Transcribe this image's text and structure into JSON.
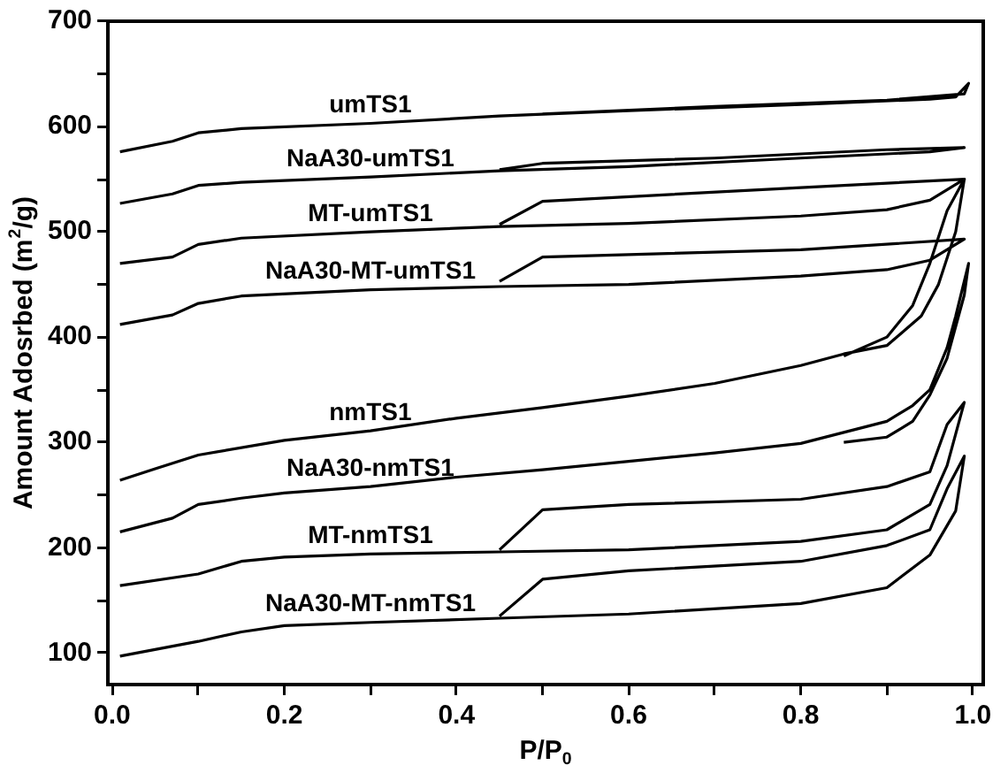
{
  "chart_data": {
    "type": "line",
    "xlabel": "P/P$_{0}$",
    "ylabel": "Amount Adosrbed (m$^{2}$/g)",
    "xlim": [
      -0.005,
      1.012
    ],
    "ylim": [
      70,
      700
    ],
    "xticks": [
      {
        "value": 0,
        "label": "0.0"
      },
      {
        "value": 0.1,
        "label": null
      },
      {
        "value": 0.2,
        "label": "0.2"
      },
      {
        "value": 0.3,
        "label": null
      },
      {
        "value": 0.4,
        "label": "0.4"
      },
      {
        "value": 0.5,
        "label": null
      },
      {
        "value": 0.6,
        "label": "0.6"
      },
      {
        "value": 0.7,
        "label": null
      },
      {
        "value": 0.8,
        "label": "0.8"
      },
      {
        "value": 0.9,
        "label": null
      },
      {
        "value": 1,
        "label": "1.0"
      }
    ],
    "yticks": [
      100,
      {
        "value": 150,
        "label": null
      },
      200,
      {
        "value": 250,
        "label": null
      },
      300,
      {
        "value": 350,
        "label": null
      },
      400,
      {
        "value": 450,
        "label": null
      },
      500,
      {
        "value": 550,
        "label": null
      },
      600,
      {
        "value": 650,
        "label": null
      },
      700
    ],
    "grid": false,
    "legend": false,
    "marker": "none",
    "line_style": "solid",
    "series": [
      {
        "name": "umTS1",
        "color": "#000000",
        "x": [
          0.009,
          0.07,
          0.1,
          0.15,
          0.3,
          0.45,
          0.6,
          0.8,
          0.95,
          0.98,
          0.995,
          0.99,
          0.9,
          0.7,
          0.5
        ],
        "values": [
          576,
          586,
          594,
          598,
          603,
          610,
          615,
          621,
          626,
          628,
          641,
          631,
          625,
          619,
          612
        ]
      },
      {
        "name": "NaA30-umTS1",
        "color": "#000000",
        "x": [
          0.009,
          0.07,
          0.1,
          0.15,
          0.3,
          0.45,
          0.6,
          0.8,
          0.95,
          0.99,
          0.9,
          0.7,
          0.5,
          0.45
        ],
        "values": [
          527,
          536,
          544,
          547,
          552,
          558,
          562,
          570,
          576,
          580,
          578,
          570,
          565,
          559
        ]
      },
      {
        "name": "MT-umTS1",
        "color": "#000000",
        "x": [
          0.009,
          0.07,
          0.1,
          0.15,
          0.3,
          0.45,
          0.6,
          0.8,
          0.9,
          0.95,
          0.99,
          0.8,
          0.5,
          0.45
        ],
        "values": [
          470,
          476,
          488,
          494,
          500,
          505,
          508,
          515,
          521,
          530,
          550,
          542,
          529,
          507
        ]
      },
      {
        "name": "NaA30-MT-umTS1",
        "color": "#000000",
        "x": [
          0.009,
          0.07,
          0.1,
          0.15,
          0.3,
          0.45,
          0.6,
          0.8,
          0.9,
          0.95,
          0.99,
          0.8,
          0.5,
          0.45
        ],
        "values": [
          412,
          421,
          432,
          439,
          445,
          448,
          450,
          458,
          464,
          473,
          493,
          483,
          476,
          453
        ]
      },
      {
        "name": "nmTS1",
        "color": "#000000",
        "x": [
          0.009,
          0.05,
          0.1,
          0.2,
          0.3,
          0.4,
          0.5,
          0.6,
          0.7,
          0.8,
          0.85,
          0.9,
          0.94,
          0.96,
          0.98,
          0.99,
          0.97,
          0.95,
          0.93,
          0.9,
          0.85
        ],
        "values": [
          264,
          275,
          288,
          302,
          311,
          323,
          333,
          344,
          356,
          373,
          384,
          392,
          420,
          450,
          500,
          550,
          520,
          470,
          430,
          400,
          382
        ]
      },
      {
        "name": "NaA30-nmTS1",
        "color": "#000000",
        "x": [
          0.009,
          0.07,
          0.1,
          0.15,
          0.2,
          0.3,
          0.4,
          0.5,
          0.6,
          0.7,
          0.8,
          0.9,
          0.93,
          0.95,
          0.97,
          0.98,
          0.995,
          0.99,
          0.97,
          0.95,
          0.93,
          0.9,
          0.85
        ],
        "values": [
          215,
          228,
          241,
          247,
          252,
          258,
          267,
          274,
          282,
          290,
          299,
          320,
          335,
          350,
          390,
          420,
          470,
          440,
          380,
          345,
          320,
          305,
          300
        ]
      },
      {
        "name": "MT-nmTS1",
        "color": "#000000",
        "x": [
          0.009,
          0.1,
          0.15,
          0.2,
          0.3,
          0.45,
          0.6,
          0.8,
          0.9,
          0.95,
          0.97,
          0.99,
          0.97,
          0.95,
          0.9,
          0.8,
          0.6,
          0.5,
          0.45
        ],
        "values": [
          164,
          175,
          187,
          191,
          194,
          196,
          198,
          206,
          217,
          241,
          278,
          338,
          317,
          272,
          258,
          246,
          241,
          236,
          198
        ]
      },
      {
        "name": "NaA30-MT-nmTS1",
        "color": "#000000",
        "x": [
          0.009,
          0.1,
          0.15,
          0.2,
          0.3,
          0.45,
          0.6,
          0.8,
          0.9,
          0.95,
          0.98,
          0.99,
          0.97,
          0.95,
          0.9,
          0.8,
          0.6,
          0.5,
          0.45
        ],
        "values": [
          97,
          111,
          120,
          126,
          129,
          133,
          137,
          147,
          162,
          193,
          235,
          287,
          256,
          217,
          202,
          187,
          178,
          170,
          135
        ]
      }
    ]
  }
}
